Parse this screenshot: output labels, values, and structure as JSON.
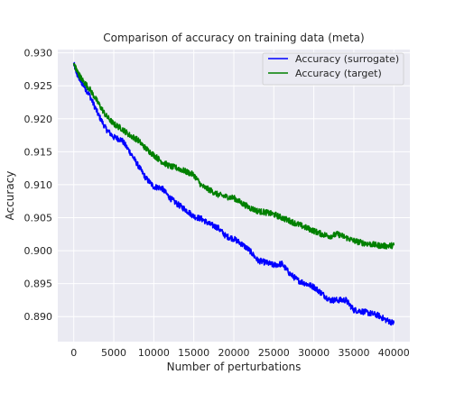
{
  "chart_data": {
    "type": "line",
    "title": "Comparison of accuracy on training data (meta)",
    "xlabel": "Number of perturbations",
    "ylabel": "Accuracy",
    "xlim": [
      -2000,
      42000
    ],
    "ylim": [
      0.8862,
      0.9305
    ],
    "xticks": [
      0,
      5000,
      10000,
      15000,
      20000,
      25000,
      30000,
      35000,
      40000
    ],
    "xtick_labels": [
      "0",
      "5000",
      "10000",
      "15000",
      "20000",
      "25000",
      "30000",
      "35000",
      "40000"
    ],
    "yticks": [
      0.89,
      0.895,
      0.9,
      0.905,
      0.91,
      0.915,
      0.92,
      0.925,
      0.93
    ],
    "ytick_labels": [
      "0.890",
      "0.895",
      "0.900",
      "0.905",
      "0.910",
      "0.915",
      "0.920",
      "0.925",
      "0.930"
    ],
    "grid": true,
    "legend_position": "top-right",
    "background": "#eaeaf2",
    "series": [
      {
        "name": "Accuracy (surrogate)",
        "color": "#0000ff",
        "x": [
          0,
          500,
          1000,
          2000,
          3000,
          4000,
          5000,
          6000,
          7000,
          8000,
          9000,
          10000,
          11000,
          12000,
          13000,
          14000,
          15000,
          16000,
          17000,
          18000,
          19000,
          20000,
          21000,
          22000,
          23000,
          24000,
          25000,
          26000,
          27000,
          28000,
          29000,
          30000,
          31000,
          32000,
          33000,
          34000,
          35000,
          36000,
          37000,
          38000,
          39000,
          40000
        ],
        "y": [
          0.9283,
          0.9265,
          0.9255,
          0.9235,
          0.9208,
          0.9185,
          0.9172,
          0.9168,
          0.915,
          0.913,
          0.911,
          0.9097,
          0.9095,
          0.908,
          0.907,
          0.9062,
          0.9052,
          0.9048,
          0.904,
          0.9035,
          0.9022,
          0.9018,
          0.901,
          0.9,
          0.8985,
          0.8982,
          0.8978,
          0.898,
          0.8965,
          0.8955,
          0.895,
          0.8945,
          0.8935,
          0.8925,
          0.8925,
          0.8925,
          0.891,
          0.8908,
          0.8905,
          0.8902,
          0.8895,
          0.889
        ]
      },
      {
        "name": "Accuracy (target)",
        "color": "#008000",
        "x": [
          0,
          500,
          1000,
          2000,
          3000,
          4000,
          5000,
          6000,
          7000,
          8000,
          9000,
          10000,
          11000,
          12000,
          13000,
          14000,
          15000,
          16000,
          17000,
          18000,
          19000,
          20000,
          21000,
          22000,
          23000,
          24000,
          25000,
          26000,
          27000,
          28000,
          29000,
          30000,
          31000,
          32000,
          33000,
          34000,
          35000,
          36000,
          37000,
          38000,
          39000,
          40000
        ],
        "y": [
          0.9283,
          0.927,
          0.926,
          0.9245,
          0.9225,
          0.9205,
          0.9192,
          0.9185,
          0.9175,
          0.9168,
          0.9155,
          0.9145,
          0.9135,
          0.9128,
          0.9125,
          0.912,
          0.9115,
          0.9098,
          0.9092,
          0.9085,
          0.9082,
          0.908,
          0.9072,
          0.9065,
          0.906,
          0.9058,
          0.9055,
          0.905,
          0.9045,
          0.904,
          0.9035,
          0.903,
          0.9025,
          0.9022,
          0.9025,
          0.902,
          0.9015,
          0.9012,
          0.901,
          0.9008,
          0.9007,
          0.9008
        ]
      }
    ]
  }
}
